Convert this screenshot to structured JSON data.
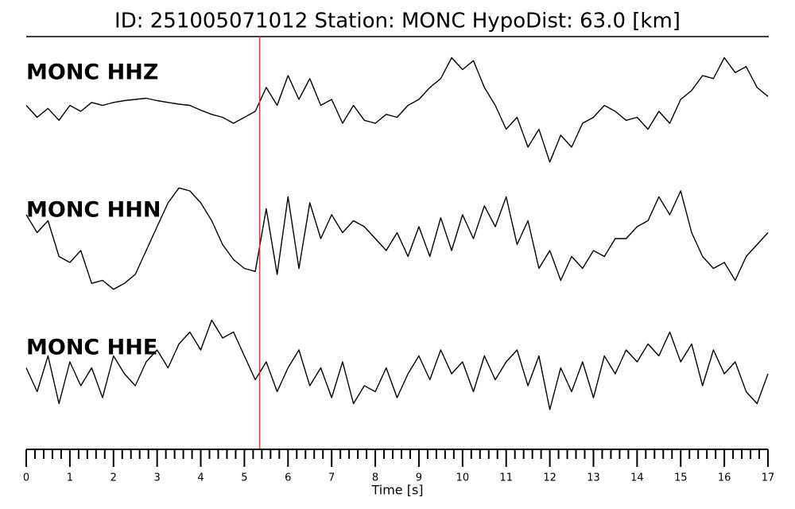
{
  "chart_data": {
    "type": "line",
    "title": "ID: 251005071012   Station: MONC   HypoDist:    63.0 [km]",
    "xlabel": "Time [s]",
    "xlim": [
      0,
      17
    ],
    "xticks": [
      0,
      1,
      2,
      3,
      4,
      5,
      6,
      7,
      8,
      9,
      10,
      11,
      12,
      13,
      14,
      15,
      16,
      17
    ],
    "xminorticks": [
      0.2,
      0.4,
      0.6,
      0.8,
      1.2,
      1.4,
      1.6,
      1.8,
      2.2,
      2.4,
      2.6,
      2.8,
      3.2,
      3.4,
      3.6,
      3.8,
      4.2,
      4.4,
      4.6,
      4.8,
      5.2,
      5.4,
      5.6,
      5.8,
      6.2,
      6.4,
      6.6,
      6.8,
      7.2,
      7.4,
      7.6,
      7.8,
      8.2,
      8.4,
      8.6,
      8.8,
      9.2,
      9.4,
      9.6,
      9.8,
      10.2,
      10.4,
      10.6,
      10.8,
      11.2,
      11.4,
      11.6,
      11.8,
      12.2,
      12.4,
      12.6,
      12.8,
      13.2,
      13.4,
      13.6,
      13.8,
      14.2,
      14.4,
      14.6,
      14.8,
      15.2,
      15.4,
      15.6,
      15.8,
      16.2,
      16.4,
      16.6,
      16.8
    ],
    "ylim": [
      -1,
      1
    ],
    "label_color": "#4e9a06",
    "pick": {
      "x": 5.35,
      "color": "#e03030"
    },
    "x": [
      0,
      0.25,
      0.5,
      0.75,
      1,
      1.25,
      1.5,
      1.75,
      2,
      2.25,
      2.5,
      2.75,
      3,
      3.25,
      3.5,
      3.75,
      4,
      4.25,
      4.5,
      4.75,
      5,
      5.25,
      5.5,
      5.75,
      6,
      6.25,
      6.5,
      6.75,
      7,
      7.25,
      7.5,
      7.75,
      8,
      8.25,
      8.5,
      8.75,
      9,
      9.25,
      9.5,
      9.75,
      10,
      10.25,
      10.5,
      10.75,
      11,
      11.25,
      11.5,
      11.75,
      12,
      12.25,
      12.5,
      12.75,
      13,
      13.25,
      13.5,
      13.75,
      14,
      14.25,
      14.5,
      14.75,
      15,
      15.25,
      15.5,
      15.75,
      16,
      16.25,
      16.5,
      16.75,
      17
    ],
    "series": [
      {
        "name": "MONC HHZ",
        "color": "#000000",
        "values": [
          0.1,
          -0.1,
          0.05,
          -0.15,
          0.1,
          0.0,
          0.15,
          0.1,
          0.15,
          0.18,
          0.2,
          0.22,
          0.18,
          0.15,
          0.12,
          0.1,
          0.02,
          -0.05,
          -0.1,
          -0.2,
          -0.1,
          0.0,
          0.4,
          0.1,
          0.6,
          0.2,
          0.55,
          0.1,
          0.2,
          -0.2,
          0.1,
          -0.15,
          -0.2,
          -0.05,
          -0.1,
          0.1,
          0.2,
          0.4,
          0.55,
          0.9,
          0.7,
          0.85,
          0.4,
          0.1,
          -0.3,
          -0.1,
          -0.6,
          -0.3,
          -0.85,
          -0.4,
          -0.6,
          -0.2,
          -0.1,
          0.1,
          0.0,
          -0.15,
          -0.1,
          -0.3,
          0.0,
          -0.2,
          0.2,
          0.35,
          0.6,
          0.55,
          0.9,
          0.65,
          0.75,
          0.4,
          0.25
        ]
      },
      {
        "name": "MONC HHN",
        "color": "#000000",
        "values": [
          0.4,
          0.1,
          0.3,
          -0.3,
          -0.4,
          -0.2,
          -0.75,
          -0.7,
          -0.85,
          -0.75,
          -0.6,
          -0.2,
          0.2,
          0.6,
          0.85,
          0.8,
          0.6,
          0.3,
          -0.1,
          -0.35,
          -0.5,
          -0.55,
          0.5,
          -0.6,
          0.7,
          -0.5,
          0.6,
          0.0,
          0.4,
          0.1,
          0.3,
          0.2,
          0.0,
          -0.2,
          0.1,
          -0.3,
          0.2,
          -0.3,
          0.35,
          -0.2,
          0.4,
          0.0,
          0.55,
          0.2,
          0.7,
          -0.1,
          0.3,
          -0.5,
          -0.2,
          -0.7,
          -0.3,
          -0.5,
          -0.2,
          -0.3,
          0.0,
          0.0,
          0.2,
          0.3,
          0.7,
          0.4,
          0.8,
          0.1,
          -0.3,
          -0.5,
          -0.4,
          -0.7,
          -0.3,
          -0.1,
          0.1
        ]
      },
      {
        "name": "MONC HHE",
        "color": "#000000",
        "values": [
          0.1,
          -0.3,
          0.3,
          -0.5,
          0.2,
          -0.2,
          0.1,
          -0.4,
          0.3,
          0.0,
          -0.2,
          0.2,
          0.4,
          0.1,
          0.5,
          0.7,
          0.4,
          0.9,
          0.6,
          0.7,
          0.3,
          -0.1,
          0.2,
          -0.3,
          0.1,
          0.4,
          -0.2,
          0.1,
          -0.4,
          0.2,
          -0.5,
          -0.2,
          -0.3,
          0.1,
          -0.4,
          0.0,
          0.3,
          -0.1,
          0.4,
          0.0,
          0.2,
          -0.3,
          0.3,
          -0.1,
          0.2,
          0.4,
          -0.2,
          0.3,
          -0.6,
          0.1,
          -0.3,
          0.2,
          -0.4,
          0.3,
          0.0,
          0.4,
          0.2,
          0.5,
          0.3,
          0.7,
          0.2,
          0.5,
          -0.2,
          0.4,
          0.0,
          0.2,
          -0.3,
          -0.5,
          0.0
        ]
      }
    ]
  }
}
